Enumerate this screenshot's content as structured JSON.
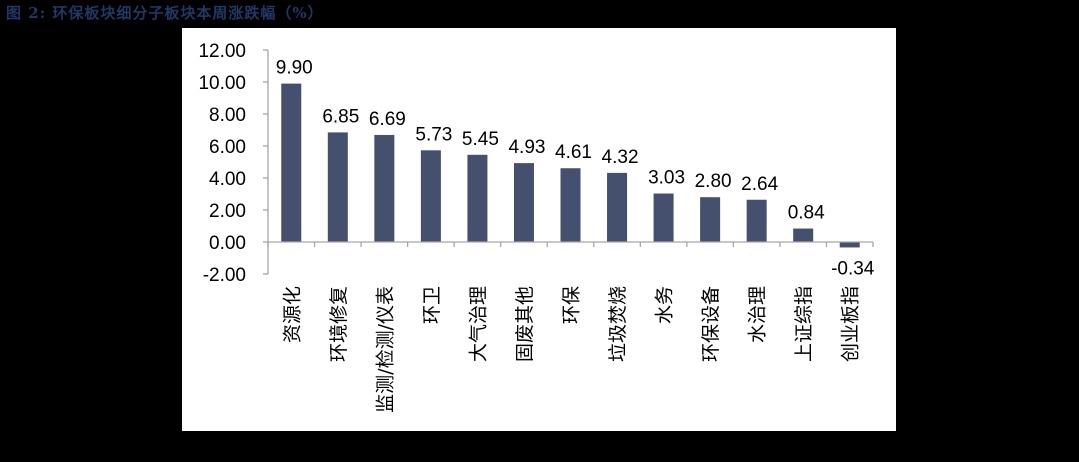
{
  "title": "图 2:  环保板块细分子板块本周涨跌幅（%）",
  "colors": {
    "background": "#000000",
    "panel": "#ffffff",
    "bar": "#454f6e",
    "title": "#1f3864",
    "axis": "#a6a6a6"
  },
  "chart_data": {
    "type": "bar",
    "title": "环保板块细分子板块本周涨跌幅（%）",
    "xlabel": "",
    "ylabel": "",
    "ylim": [
      -2,
      12
    ],
    "yticks": [
      "12.00",
      "10.00",
      "8.00",
      "6.00",
      "4.00",
      "2.00",
      "0.00",
      "-2.00"
    ],
    "grid": false,
    "legend": null,
    "categories": [
      "资源化",
      "环境修复",
      "监测/检测/仪表",
      "环卫",
      "大气治理",
      "固废其他",
      "环保",
      "垃圾焚烧",
      "水务",
      "环保设备",
      "水治理",
      "上证综指",
      "创业板指"
    ],
    "values": [
      9.9,
      6.85,
      6.69,
      5.73,
      5.45,
      4.93,
      4.61,
      4.32,
      3.03,
      2.8,
      2.64,
      0.84,
      -0.34
    ],
    "value_labels": [
      "9.90",
      "6.85",
      "6.69",
      "5.73",
      "5.45",
      "4.93",
      "4.61",
      "4.32",
      "3.03",
      "2.80",
      "2.64",
      "0.84",
      "-0.34"
    ]
  }
}
